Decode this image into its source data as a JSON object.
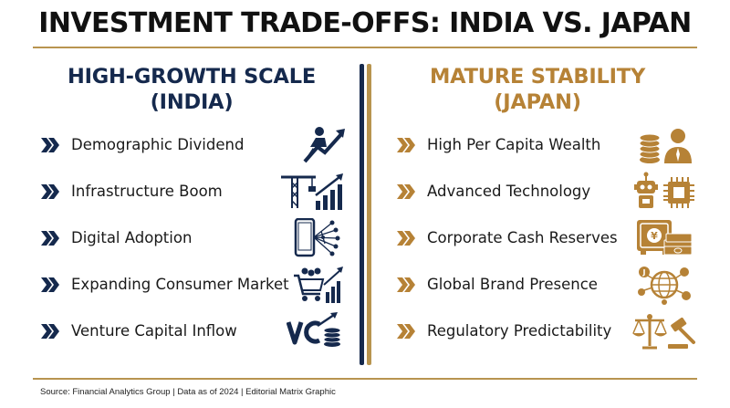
{
  "title": "INVESTMENT TRADE-OFFS: INDIA VS. JAPAN",
  "colors": {
    "navy": "#15294d",
    "gold": "#b68236",
    "rule": "#b8944f"
  },
  "india": {
    "heading_line1": "HIGH-GROWTH SCALE",
    "heading_line2": "(INDIA)",
    "items": [
      {
        "label": "Demographic Dividend",
        "icon": "rising-person-arrow-icon"
      },
      {
        "label": "Infrastructure Boom",
        "icon": "crane-growth-chart-icon"
      },
      {
        "label": "Digital Adoption",
        "icon": "smartphone-network-icon"
      },
      {
        "label": "Expanding Consumer Market",
        "icon": "shopping-cart-growth-icon"
      },
      {
        "label": "Venture Capital Inflow",
        "icon": "vc-coins-icon"
      }
    ]
  },
  "japan": {
    "heading_line1": "MATURE STABILITY",
    "heading_line2": "(JAPAN)",
    "items": [
      {
        "label": "High Per Capita Wealth",
        "icon": "coins-person-icon"
      },
      {
        "label": "Advanced Technology",
        "icon": "robot-chip-icon"
      },
      {
        "label": "Corporate Cash Reserves",
        "icon": "yen-safe-cash-icon"
      },
      {
        "label": "Global Brand Presence",
        "icon": "globe-network-icon"
      },
      {
        "label": "Regulatory Predictability",
        "icon": "scales-gavel-icon"
      }
    ]
  },
  "footer": "Source: Financial Analytics Group | Data as of 2024 | Editorial Matrix Graphic"
}
